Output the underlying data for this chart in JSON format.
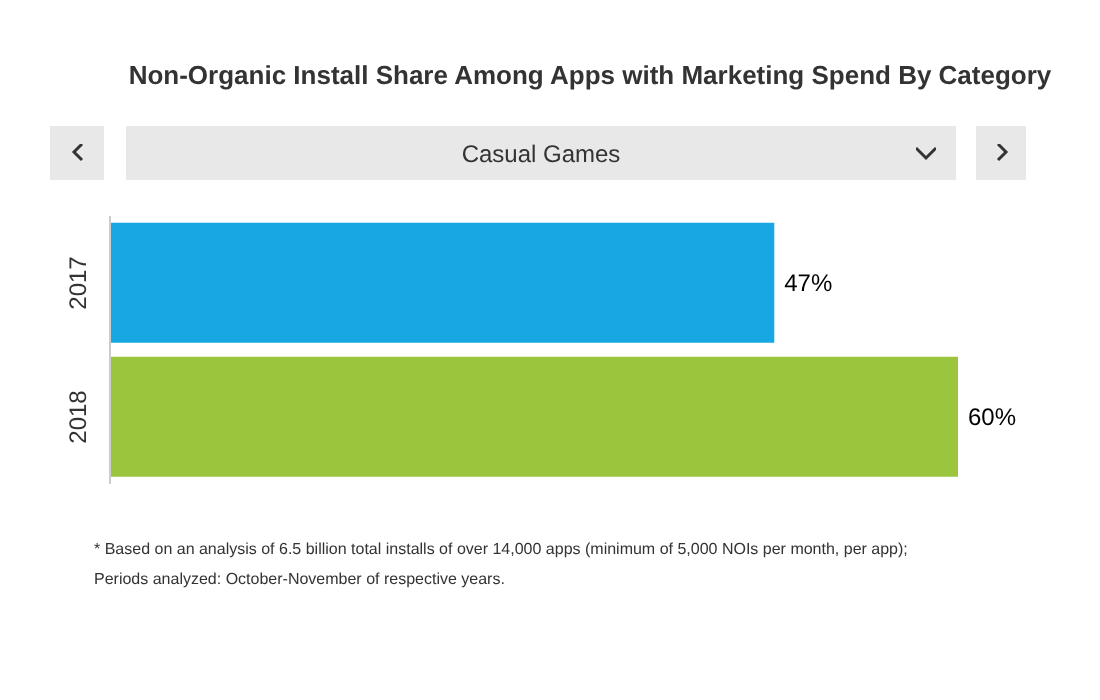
{
  "chart_data": {
    "type": "bar",
    "orientation": "horizontal",
    "title": "Non-Organic Install Share Among Apps with Marketing Spend By Category",
    "subtitle": "Casual Games",
    "categories": [
      "2017",
      "2018"
    ],
    "values": [
      47,
      60
    ],
    "colors": [
      "#17a8e3",
      "#9bc53d"
    ],
    "value_labels": [
      "47%",
      "60%"
    ],
    "annotations": [
      "* Based on an analysis of 6.5 billion total installs of over 14,000 apps (minimum of 5,000 NOIs per month, per app);",
      "Periods analyzed: October-November of respective years."
    ]
  }
}
